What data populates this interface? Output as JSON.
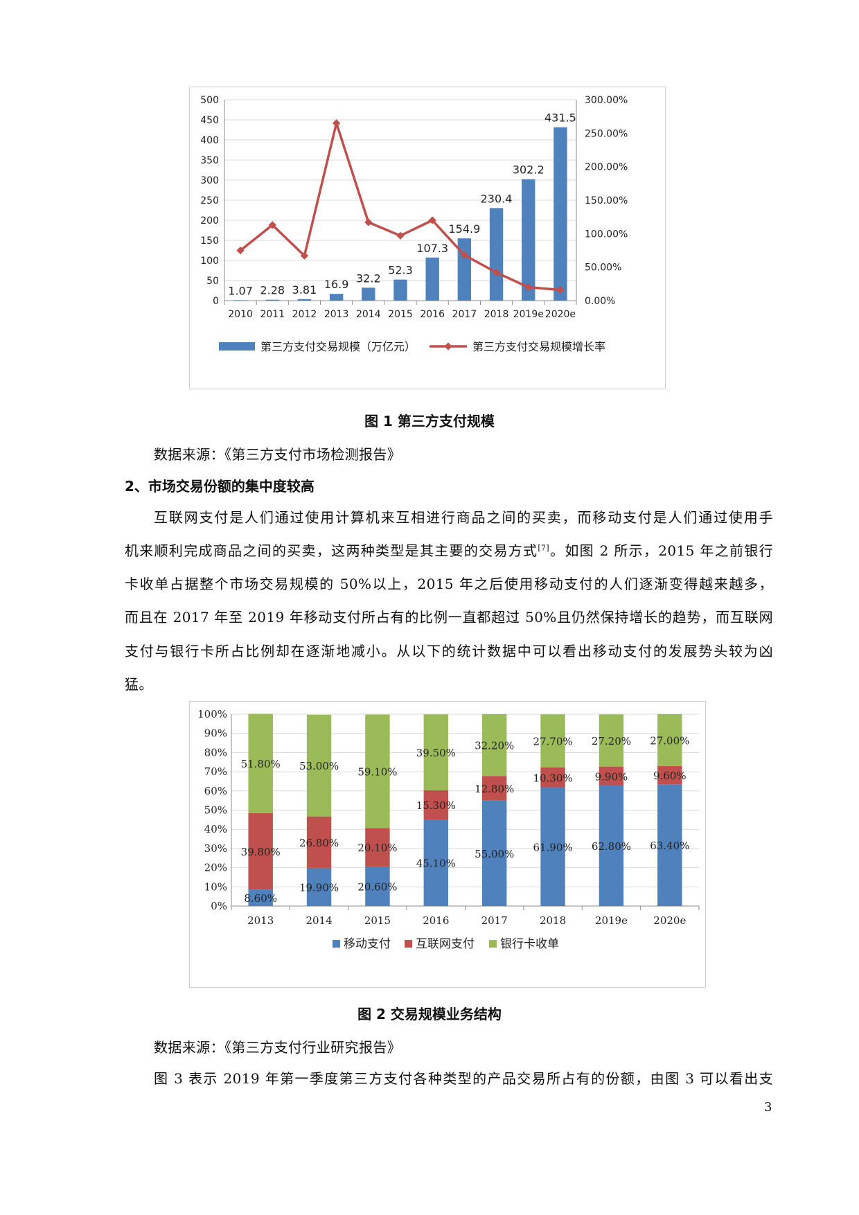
{
  "colors": {
    "blue": "#4f81bd",
    "red": "#c0504d",
    "green": "#9bbb59",
    "grid": "#d9d9d9",
    "axis": "#8c8c8c"
  },
  "fig1": {
    "caption": "图 1 第三方支付规模",
    "source": "数据来源：《第三方支付市场检测报告》",
    "chart_data": {
      "type": "bar+line",
      "categories": [
        "2010",
        "2011",
        "2012",
        "2013",
        "2014",
        "2015",
        "2016",
        "2017",
        "2018",
        "2019e",
        "2020e"
      ],
      "series": [
        {
          "name": "第三方支付交易规模（万亿元）",
          "kind": "bar",
          "axis": "left",
          "values": [
            1.07,
            2.28,
            3.81,
            16.9,
            32.2,
            52.3,
            107.3,
            154.9,
            230.4,
            302.2,
            431.5
          ],
          "labels": [
            "1.07",
            "2.28",
            "3.81",
            "16.9",
            "32.2",
            "52.3",
            "107.3",
            "154.9",
            "230.4",
            "302.2",
            "431.5"
          ]
        },
        {
          "name": "第三方支付交易规模增长率",
          "kind": "line",
          "axis": "right",
          "values": [
            75,
            113,
            67,
            265,
            117,
            97,
            120,
            68,
            42,
            20,
            16
          ]
        }
      ],
      "ylim": [
        0,
        500
      ],
      "yticks": [
        "0",
        "50",
        "100",
        "150",
        "200",
        "250",
        "300",
        "350",
        "400",
        "450",
        "500"
      ],
      "y2lim": [
        0,
        300
      ],
      "y2ticks": [
        "0.00%",
        "50.00%",
        "100.00%",
        "150.00%",
        "200.00%",
        "250.00%",
        "300.00%"
      ],
      "legend": [
        "第三方支付交易规模（万亿元）",
        "第三方支付交易规模增长率"
      ],
      "grid": true,
      "legend_position": "bottom"
    }
  },
  "section2": {
    "heading": "2、市场交易份额的集中度较高",
    "lines": [
      "互联网支付是人们通过使用计算机来互相进行商品之间的买卖，而移动支付是人们通过使用手",
      "机来顺利完成商品之间的买卖，这两种类型是其主要的交易方式",
      "卡收单占据整个市场交易规模的 50%以上，2015 年之后使用移动支付的人们逐渐变得越来越多，",
      "而且在 2017 年至 2019 年移动支付所占有的比例一直都超过 50%且仍然保持增长的趋势，而互联网",
      "支付与银行卡所占比例却在逐渐地减小。从以下的统计数据中可以看出移动支付的发展势头较为凶",
      "猛。"
    ],
    "cite": "[7]",
    "line2_tail": "。如图 2 所示，2015 年之前银行"
  },
  "fig2": {
    "caption": "图 2  交易规模业务结构",
    "source": "数据来源：《第三方支付行业研究报告》",
    "chart_data": {
      "type": "stacked-bar-100",
      "categories": [
        "2013",
        "2014",
        "2015",
        "2016",
        "2017",
        "2018",
        "2019e",
        "2020e"
      ],
      "series": [
        {
          "name": "移动支付",
          "values": [
            8.6,
            19.9,
            20.6,
            45.1,
            55.0,
            61.9,
            62.8,
            63.4
          ],
          "labels": [
            "8.60%",
            "19.90%",
            "20.60%",
            "45.10%",
            "55.00%",
            "61.90%",
            "62.80%",
            "63.40%"
          ]
        },
        {
          "name": "互联网支付",
          "values": [
            39.8,
            26.8,
            20.1,
            15.3,
            12.8,
            10.3,
            9.9,
            9.6
          ],
          "labels": [
            "39.80%",
            "26.80%",
            "20.10%",
            "15.30%",
            "12.80%",
            "10.30%",
            "9.90%",
            "9.60%"
          ]
        },
        {
          "name": "银行卡收单",
          "values": [
            51.8,
            53.0,
            59.1,
            39.5,
            32.2,
            27.7,
            27.2,
            27.0
          ],
          "labels": [
            "51.80%",
            "53.00%",
            "59.10%",
            "39.50%",
            "32.20%",
            "27.70%",
            "27.20%",
            "27.00%"
          ]
        }
      ],
      "yticks": [
        "0%",
        "10%",
        "20%",
        "30%",
        "40%",
        "50%",
        "60%",
        "70%",
        "80%",
        "90%",
        "100%"
      ],
      "ylim": [
        0,
        100
      ],
      "legend": [
        "移动支付",
        "互联网支付",
        "银行卡收单"
      ],
      "grid": true,
      "legend_position": "bottom"
    }
  },
  "tail_line": "图 3 表示 2019 年第一季度第三方支付各种类型的产品交易所占有的份额，由图 3 可以看出支",
  "page_number": "3"
}
